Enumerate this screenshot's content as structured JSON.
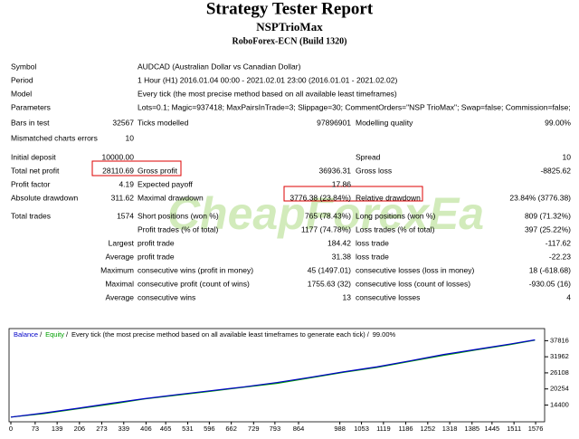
{
  "header": {
    "title": "Strategy Tester Report",
    "expert": "NSPTrioMax",
    "server": "RoboForex-ECN (Build 1320)"
  },
  "watermark": "CheapForexEa",
  "rows": [
    [
      "Symbol",
      "AUDCAD (Australian Dollar vs Canadian Dollar)"
    ],
    [
      "Period",
      "1 Hour (H1) 2016.01.04 00:00 - 2021.02.01 23:00 (2016.01.01 - 2021.02.02)"
    ],
    [
      "Model",
      "Every tick (the most precise method based on all available least timeframes)"
    ],
    [
      "Parameters",
      "Lots=0.1; Magic=937418; MaxPairsInTrade=3; Slippage=30; CommentOrders=\"NSP TrioMax\"; Swap=false; Commission=false;"
    ],
    [
      "Bars in test",
      "32567",
      "Ticks modelled",
      "97896901",
      "Modelling quality",
      "99.00%"
    ],
    [
      "Mismatched charts errors",
      "10",
      null,
      null,
      null,
      null
    ],
    [
      "Initial deposit",
      "10000.00",
      null,
      null,
      "Spread",
      "10"
    ],
    [
      "Total net profit",
      "28110.69",
      "Gross profit",
      "36936.31",
      "Gross loss",
      "-8825.62"
    ],
    [
      "Profit factor",
      "4.19",
      "Expected payoff",
      "17.86",
      null,
      null
    ],
    [
      "Absolute drawdown",
      "311.62",
      "Maximal drawdown",
      "3776.38 (23.84%)",
      "Relative drawdown",
      "23.84% (3776.38)"
    ],
    [
      "Total trades",
      "1574",
      "Short positions (won %)",
      "765 (78.43%)",
      "Long positions (won %)",
      "809 (71.32%)"
    ],
    [
      null,
      null,
      "Profit trades (% of total)",
      "1177 (74.78%)",
      "Loss trades (% of total)",
      "397 (25.22%)"
    ],
    [
      null,
      "Largest",
      "profit trade",
      "184.42",
      "loss trade",
      "-117.62"
    ],
    [
      null,
      "Average",
      "profit trade",
      "31.38",
      "loss trade",
      "-22.23"
    ],
    [
      null,
      "Maximum",
      "consecutive wins (profit in money)",
      "45 (1497.01)",
      "consecutive losses (loss in money)",
      "18 (-618.68)"
    ],
    [
      null,
      "Maximal",
      "consecutive profit (count of wins)",
      "1755.63 (32)",
      "consecutive loss (count of losses)",
      "-930.05 (16)"
    ],
    [
      null,
      "Average",
      "consecutive wins",
      "13",
      "consecutive losses",
      "4"
    ]
  ],
  "chart_data": {
    "type": "line",
    "legend": [
      "Balance",
      "Equity",
      "Every tick (the most precise method based on all available least timeframes to generate each tick)",
      "99.00%"
    ],
    "x": [
      0,
      100,
      200,
      300,
      400,
      500,
      600,
      700,
      800,
      900,
      1000,
      1100,
      1200,
      1300,
      1400,
      1500,
      1574
    ],
    "series": [
      {
        "name": "Balance",
        "color": "#0000c8",
        "values": [
          10000,
          11500,
          13200,
          15000,
          16700,
          18200,
          19600,
          21000,
          22600,
          24500,
          26500,
          28300,
          30500,
          32800,
          34700,
          36600,
          38110
        ]
      },
      {
        "name": "Equity",
        "color": "#00a000",
        "values": [
          10000,
          11300,
          13000,
          14700,
          16600,
          18000,
          19400,
          20900,
          22300,
          24300,
          26300,
          28100,
          30300,
          32500,
          34500,
          36400,
          38000
        ]
      }
    ],
    "xlim": [
      0,
      1603
    ],
    "ylim": [
      8292,
      42227
    ],
    "xticks": [
      0,
      73,
      139,
      206,
      273,
      339,
      406,
      465,
      531,
      596,
      662,
      729,
      793,
      864,
      988,
      1053,
      1119,
      1186,
      1252,
      1318,
      1385,
      1445,
      1511,
      1576
    ],
    "yticks": [
      14400,
      20254,
      26108,
      31962,
      37816
    ]
  }
}
